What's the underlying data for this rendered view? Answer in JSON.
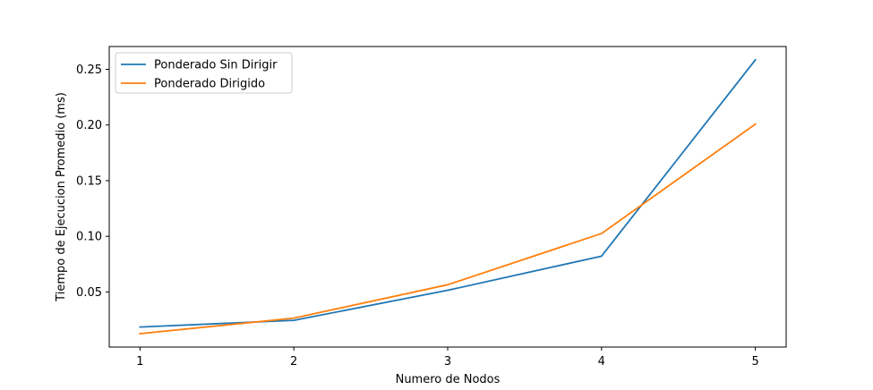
{
  "chart_data": {
    "type": "line",
    "title": "",
    "xlabel": "Numero de Nodos",
    "ylabel": "Tiempo de Ejecucion Promedio (ms)",
    "x": [
      1,
      2,
      3,
      4,
      5
    ],
    "x_ticks": [
      "1",
      "2",
      "3",
      "4",
      "5"
    ],
    "xlim": [
      0.8,
      5.2
    ],
    "ylim": [
      0.0005,
      0.2705
    ],
    "y_ticks": [
      0.05,
      0.1,
      0.15,
      0.2,
      0.25
    ],
    "y_tick_labels": [
      "0.05",
      "0.10",
      "0.15",
      "0.20",
      "0.25"
    ],
    "grid": false,
    "legend_position": "top-left",
    "series": [
      {
        "name": "Ponderado Sin Dirigir",
        "color": "#1f77b4",
        "values": [
          0.0185,
          0.0245,
          0.0515,
          0.0822,
          0.2585
        ]
      },
      {
        "name": "Ponderado Dirigido",
        "color": "#ff7f0e",
        "values": [
          0.0125,
          0.0265,
          0.0565,
          0.1025,
          0.2008
        ]
      }
    ]
  }
}
